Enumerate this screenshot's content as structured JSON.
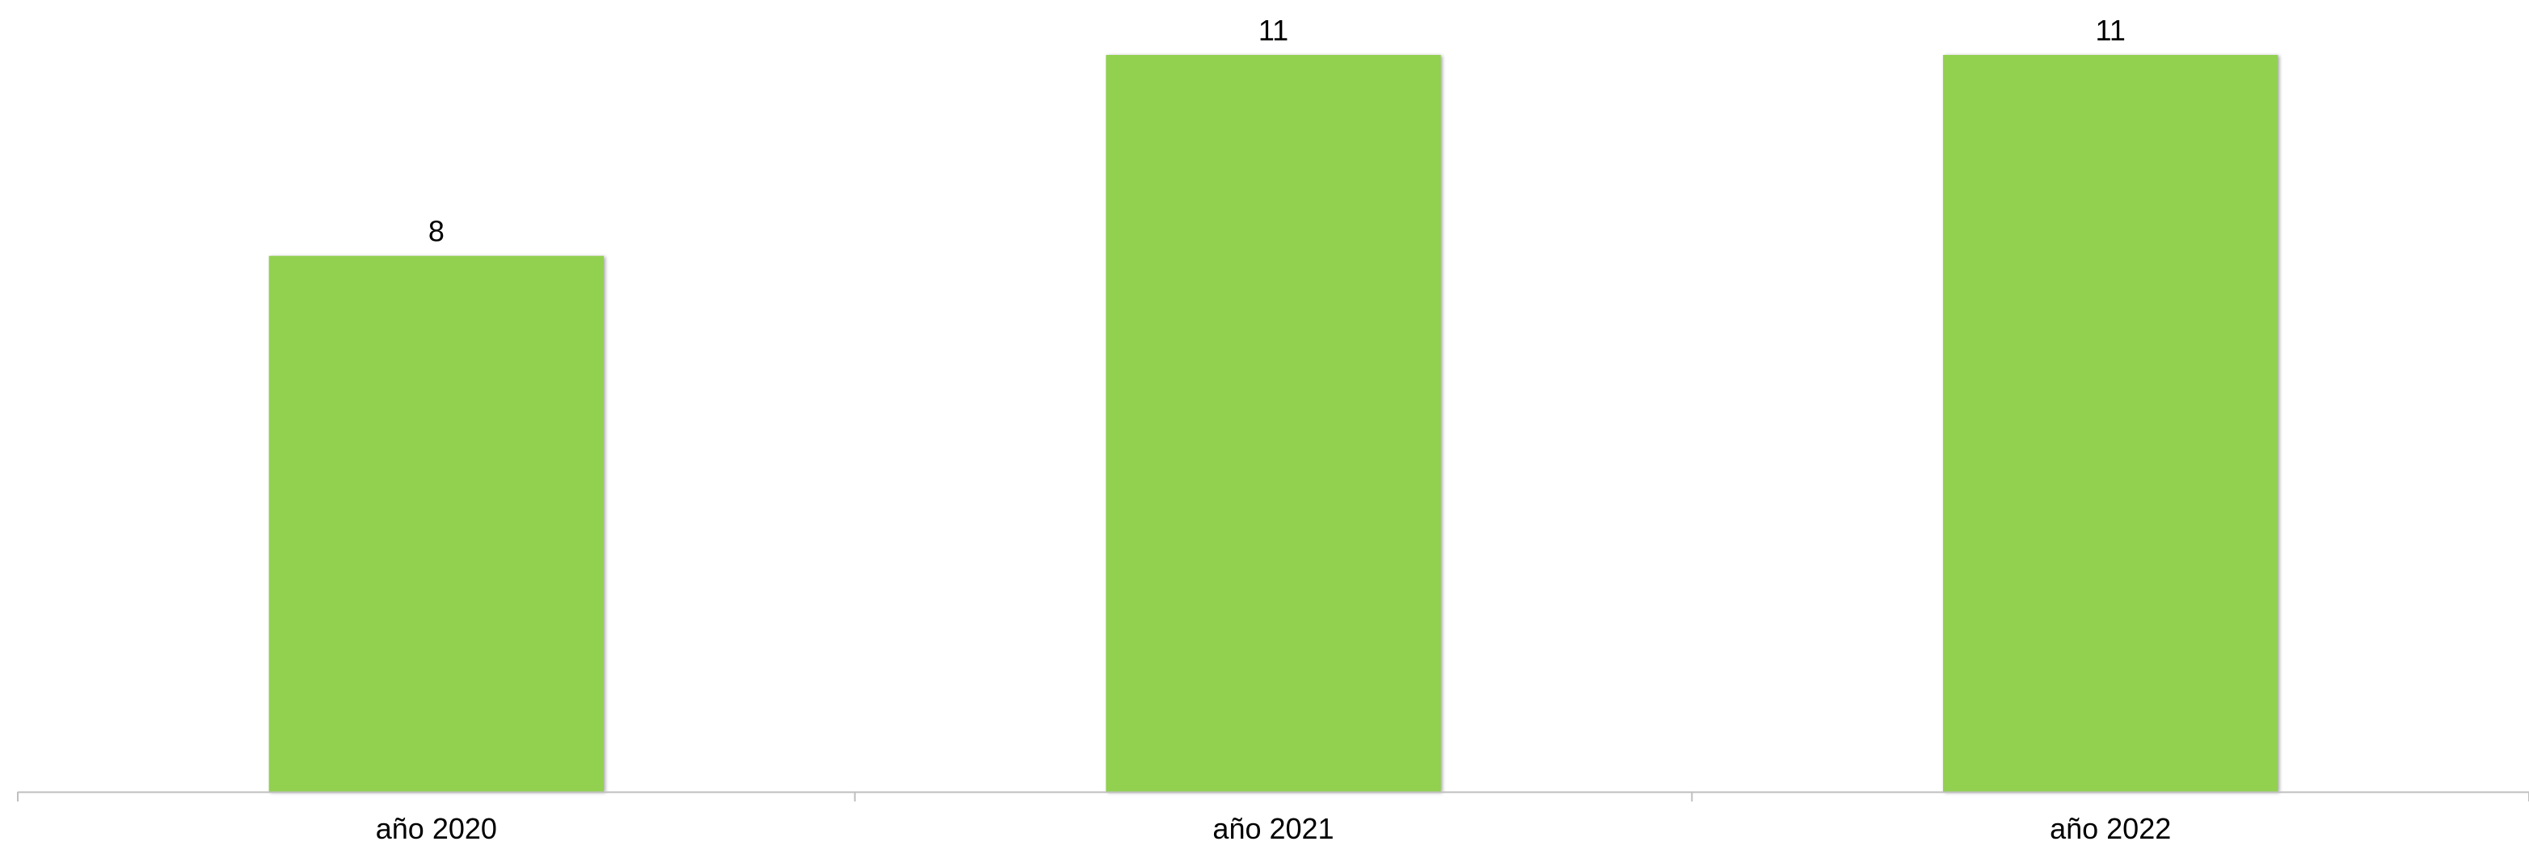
{
  "chart_data": {
    "type": "bar",
    "title": "",
    "xlabel": "",
    "ylabel": "",
    "categories": [
      "año 2020",
      "año 2021",
      "año 2022"
    ],
    "values": [
      8,
      11,
      11
    ],
    "data_labels": [
      "8",
      "11",
      "11"
    ],
    "ylim": [
      0,
      11
    ],
    "grid": false,
    "legend": "none",
    "colors": {
      "bar": "#92d050",
      "axis": "#bfbfbf",
      "text": "#000000"
    }
  }
}
